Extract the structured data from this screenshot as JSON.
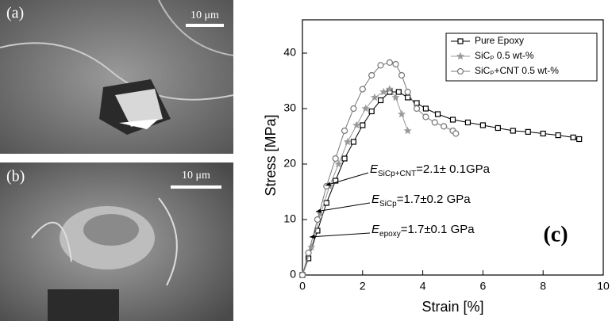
{
  "panels": [
    {
      "label": "(a)",
      "scale": "10 μm"
    },
    {
      "label": "(b)",
      "scale": "10 μm"
    }
  ],
  "chart_data": {
    "type": "line",
    "panel_label": "(c)",
    "x_label": "Strain [%]",
    "y_label": "Stress [MPa]",
    "xlim": [
      0,
      10
    ],
    "ylim": [
      0,
      46
    ],
    "xticks": [
      0,
      2,
      4,
      6,
      8,
      10
    ],
    "yticks": [
      0,
      10,
      20,
      30,
      40
    ],
    "legend": "top-right",
    "series": [
      {
        "name": "Pure Epoxy",
        "color": "#000000",
        "marker": "square",
        "x": [
          0,
          0.2,
          0.5,
          0.8,
          1.1,
          1.4,
          1.7,
          2,
          2.3,
          2.6,
          2.9,
          3.2,
          3.5,
          3.8,
          4.1,
          4.5,
          5,
          5.5,
          6,
          6.5,
          7,
          7.5,
          8,
          8.5,
          9,
          9.2
        ],
        "values": [
          0,
          3,
          8,
          13,
          17,
          21,
          24,
          27,
          29.5,
          31.5,
          33,
          33,
          32,
          31,
          30,
          29,
          28,
          27.5,
          27,
          26.5,
          26,
          25.8,
          25.5,
          25.2,
          24.8,
          24.5
        ]
      },
      {
        "name": "SiCₚ  0.5 wt-%",
        "color": "#999999",
        "marker": "star",
        "x": [
          0,
          0.3,
          0.6,
          0.9,
          1.2,
          1.5,
          1.8,
          2.1,
          2.4,
          2.7,
          2.9,
          3.1,
          3.3,
          3.5
        ],
        "values": [
          0,
          5,
          11,
          16,
          20,
          24,
          27,
          30,
          32,
          33,
          33.5,
          32,
          29,
          26
        ]
      },
      {
        "name": "SiCₚ+CNT 0.5 wt-%",
        "color": "#777777",
        "marker": "circle",
        "x": [
          0,
          0.2,
          0.5,
          0.8,
          1.1,
          1.4,
          1.7,
          2,
          2.3,
          2.6,
          2.9,
          3.1,
          3.3,
          3.5,
          3.8,
          4.1,
          4.4,
          4.7,
          5,
          5.1
        ],
        "values": [
          0,
          4,
          10,
          16,
          21,
          26,
          30,
          33.5,
          36,
          37.8,
          38.3,
          38,
          36,
          33,
          30,
          28.5,
          27.5,
          26.8,
          26,
          25.5
        ]
      }
    ],
    "annotations": [
      {
        "symbol": "E",
        "sub": "SiCp+CNT",
        "text": "=2.1± 0.1GPa"
      },
      {
        "symbol": "E",
        "sub": "SiCp",
        "text": "=1.7±0.2 GPa"
      },
      {
        "symbol": "E",
        "sub": "epoxy",
        "text": "=1.7±0.1 GPa"
      }
    ]
  }
}
